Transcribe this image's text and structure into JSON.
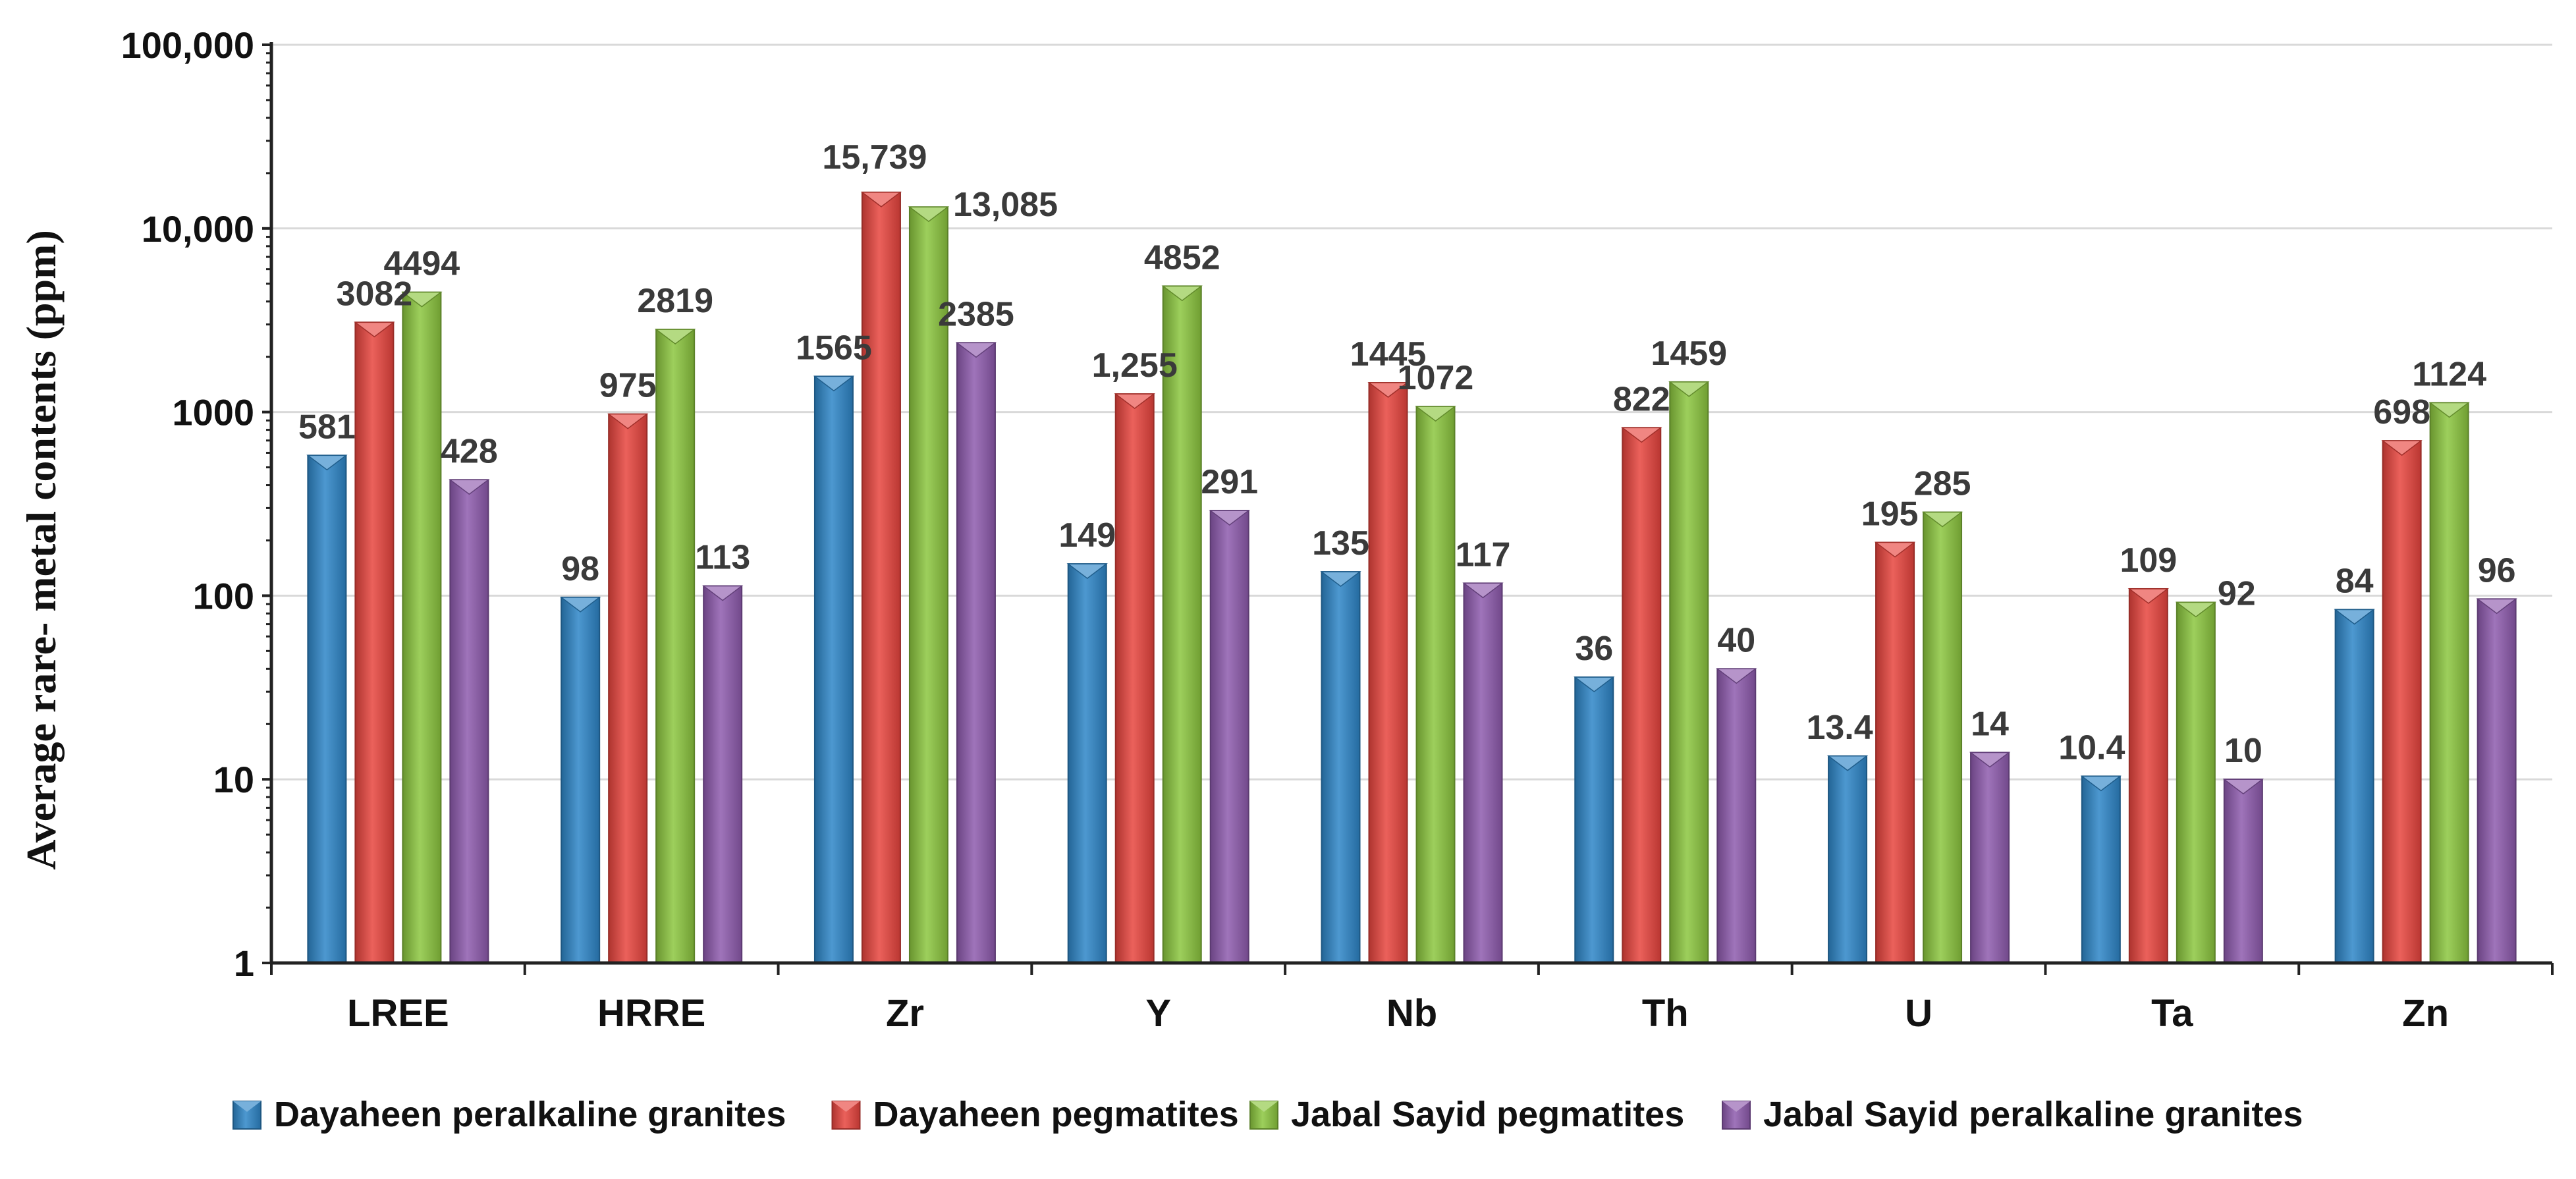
{
  "chart_data": {
    "type": "bar",
    "title": "",
    "xlabel": "",
    "ylabel": "Average rare- metal contents (ppm)",
    "yscale": "log",
    "ylim": [
      1,
      100000
    ],
    "ytick_values": [
      1,
      10,
      100,
      1000,
      10000,
      100000
    ],
    "ytick_labels": [
      "1",
      "10",
      "100",
      "1000",
      "10,000",
      "100,000"
    ],
    "grid": "horizontal",
    "legend_position": "bottom",
    "categories": [
      "LREE",
      "HRRE",
      "Zr",
      "Y",
      "Nb",
      "Th",
      "U",
      "Ta",
      "Zn"
    ],
    "series": [
      {
        "name": "Dayaheen peralkaline granites",
        "color": "#2E86C8",
        "values": [
          581,
          98,
          1565,
          149,
          135,
          36,
          13.4,
          10.4,
          84
        ],
        "labels": [
          "581",
          "98",
          "1565",
          "149",
          "135",
          "36",
          "13.4",
          "10.4",
          "84"
        ]
      },
      {
        "name": "Dayaheen pegmatites",
        "color": "#E8453E",
        "values": [
          3082,
          975,
          15739,
          1255,
          1445,
          822,
          195,
          109,
          698
        ],
        "labels": [
          "3082",
          "975",
          "15,739",
          "1,255",
          "1445",
          "822",
          "195",
          "109",
          "698"
        ]
      },
      {
        "name": "Jabal Sayid pegmatites",
        "color": "#8CC63F",
        "values": [
          4494,
          2819,
          13085,
          4852,
          1072,
          1459,
          285,
          92,
          1124
        ],
        "labels": [
          "4494",
          "2819",
          "13,085",
          "4852",
          "1072",
          "1459",
          "285",
          "92",
          "1124"
        ]
      },
      {
        "name": "Jabal Sayid peralkaline granites",
        "color": "#8E5BAE",
        "values": [
          428,
          113,
          2385,
          291,
          117,
          40,
          14,
          10,
          96
        ],
        "labels": [
          "428",
          "113",
          "2385",
          "291",
          "117",
          "40",
          "14",
          "10",
          "96"
        ]
      }
    ]
  }
}
